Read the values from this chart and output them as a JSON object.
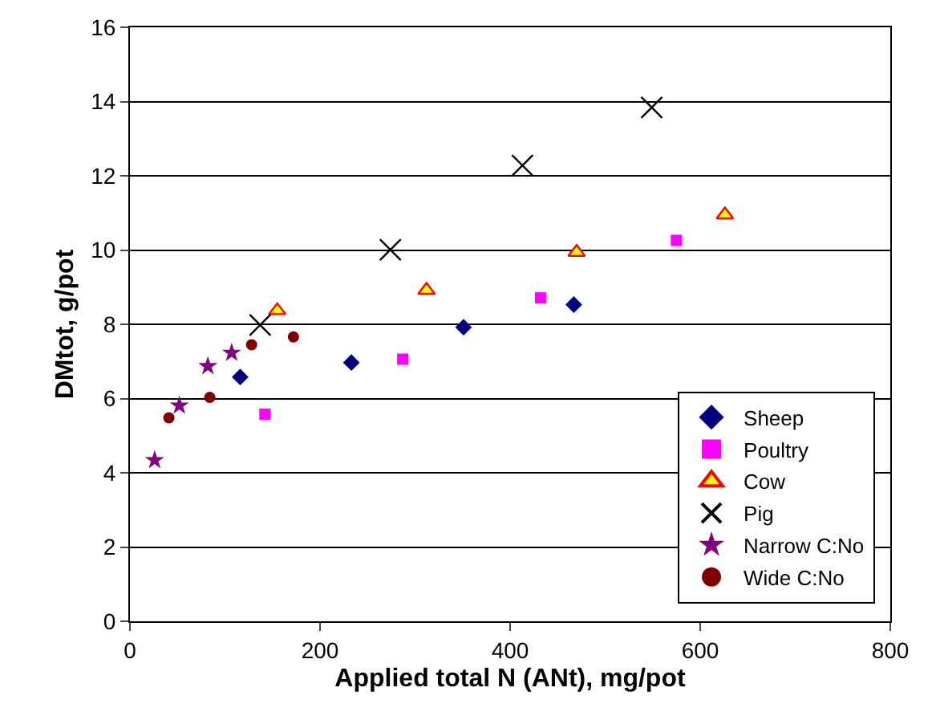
{
  "chart_data": {
    "type": "scatter",
    "xlabel": "Applied total N (ANt), mg/pot",
    "ylabel": "DMtot, g/pot",
    "xlim": [
      0,
      800
    ],
    "xticks": [
      0,
      200,
      400,
      600,
      800
    ],
    "ylim": [
      0,
      16
    ],
    "yticks": [
      0,
      2,
      4,
      6,
      8,
      10,
      12,
      14,
      16
    ],
    "grid": "y",
    "legend": "bottom right",
    "series": [
      {
        "name": "Sheep",
        "color": "#000080",
        "marker": "diamond",
        "x": [
          116,
          233,
          351,
          467
        ],
        "values": [
          6.58,
          6.97,
          7.92,
          8.53
        ]
      },
      {
        "name": "Poultry",
        "color": "#ff00ff",
        "marker": "square",
        "x": [
          142,
          287,
          432,
          575
        ],
        "values": [
          5.58,
          7.06,
          8.71,
          10.26
        ]
      },
      {
        "name": "Cow",
        "color": "#ffff00",
        "marker": "triangle",
        "x": [
          155,
          312,
          470,
          626
        ],
        "values": [
          8.37,
          8.92,
          9.94,
          10.95
        ]
      },
      {
        "name": "Pig",
        "color": "#000000",
        "marker": "cross",
        "x": [
          137,
          274,
          413,
          549
        ],
        "values": [
          7.98,
          10.01,
          12.28,
          13.84
        ]
      },
      {
        "name": "Narrow C:No",
        "color": "#800080",
        "marker": "star",
        "x": [
          26,
          52,
          82,
          107
        ],
        "values": [
          4.34,
          5.81,
          6.87,
          7.23
        ]
      },
      {
        "name": "Wide C:No",
        "color": "#800000",
        "marker": "circle",
        "x": [
          41,
          84,
          128,
          172
        ],
        "values": [
          5.48,
          6.03,
          7.45,
          7.66
        ]
      }
    ]
  }
}
